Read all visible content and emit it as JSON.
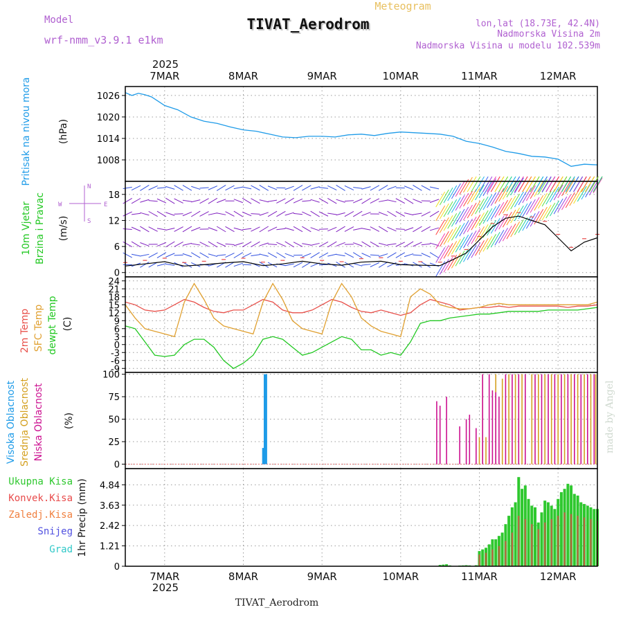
{
  "header": {
    "model_label": "Model",
    "model_name": "wrf-nmm_v3.9.1  e1km",
    "product": "Meteogram",
    "station": "TIVAT_Aerodrom",
    "location": "lon,lat (18.73E, 42.4N)",
    "elevation": "Nadmorska Visina 2m",
    "model_elevation": "Nadmorska Visina u modelu 102.539m",
    "footer_station": "TIVAT_Aerodrom",
    "credit": "made by Angel"
  },
  "time_axis": {
    "year": "2025",
    "days": [
      "7MAR",
      "8MAR",
      "9MAR",
      "10MAR",
      "11MAR",
      "12MAR"
    ],
    "x_range_hours": [
      0,
      144
    ],
    "label_hours": [
      12,
      36,
      60,
      84,
      108,
      132
    ]
  },
  "colors": {
    "pressure": "#1e9be8",
    "t2m": "#e8504a",
    "sfc": "#e0a030",
    "dewpoint": "#22c822",
    "cloud_high": "#1e9be8",
    "cloud_mid": "#d4a020",
    "cloud_low": "#cc1090",
    "precip_total": "#2ec82e",
    "precip_conv": "#e84a4a",
    "precip_frozen": "#f08040",
    "snow": "#5050e0",
    "hail": "#30c8c8",
    "wind_legend": "#b060d0",
    "title_purple": "#b060d0",
    "meteogram_gold": "#e8c060"
  },
  "chart_data": [
    {
      "type": "line",
      "panel": "pressure",
      "ylabel_left": "Pritisak na nivou mora",
      "unit": "(hPa)",
      "ylim": [
        1002,
        1028.5
      ],
      "yticks": [
        1008,
        1014,
        1020,
        1026
      ],
      "grid": true,
      "x_hours": [
        0,
        2,
        4,
        6,
        8,
        10,
        12,
        16,
        20,
        24,
        28,
        32,
        36,
        40,
        44,
        48,
        52,
        56,
        60,
        64,
        68,
        72,
        76,
        80,
        84,
        88,
        92,
        96,
        100,
        104,
        108,
        112,
        116,
        120,
        124,
        128,
        132,
        136,
        140,
        144
      ],
      "series": [
        {
          "values": [
            1026.8,
            1026.0,
            1026.6,
            1026.2,
            1025.6,
            1024.4,
            1023.2,
            1022.0,
            1020.0,
            1018.8,
            1018.2,
            1017.2,
            1016.4,
            1016.0,
            1015.2,
            1014.4,
            1014.2,
            1014.6,
            1014.6,
            1014.4,
            1015.0,
            1015.2,
            1014.8,
            1015.4,
            1015.8,
            1015.6,
            1015.4,
            1015.2,
            1014.6,
            1013.2,
            1012.6,
            1011.6,
            1010.4,
            1009.8,
            1009.0,
            1008.8,
            1008.2,
            1006.2,
            1006.8,
            1006.6
          ]
        }
      ]
    },
    {
      "type": "line",
      "panel": "wind",
      "ylabel_left": "10m Vjetar",
      "ylabel_left2": "Brzina i Pravac",
      "unit": "(m/s)",
      "ylim": [
        -1,
        21
      ],
      "yticks": [
        0,
        6,
        12,
        18
      ],
      "direction_legend": {
        "n": "N",
        "s": "S",
        "w": "W",
        "e": "E"
      },
      "grid": true,
      "x_hours": [
        0,
        6,
        12,
        18,
        24,
        30,
        36,
        42,
        48,
        54,
        60,
        66,
        72,
        78,
        84,
        90,
        96,
        100,
        104,
        108,
        112,
        116,
        120,
        124,
        128,
        132,
        136,
        140,
        144
      ],
      "series": [
        {
          "name": "speed",
          "values": [
            1.5,
            2.0,
            2.5,
            1.5,
            1.8,
            2.2,
            2.5,
            1.6,
            2.0,
            2.6,
            2.0,
            1.7,
            2.4,
            2.6,
            1.8,
            1.7,
            1.6,
            3.0,
            4.5,
            7.5,
            10.5,
            12.5,
            13.0,
            12.0,
            11.0,
            8.0,
            5.0,
            7.0,
            8.0
          ]
        }
      ]
    },
    {
      "type": "line",
      "panel": "temperature",
      "ylabel_left": "2m Temp",
      "ylabel_left2": "SFC Temp",
      "ylabel_left3": "dewpt Temp",
      "unit": "(C)",
      "ylim": [
        -10.5,
        25.5
      ],
      "yticks": [
        -9,
        -6,
        -3,
        0,
        3,
        6,
        9,
        12,
        15,
        18,
        21,
        24
      ],
      "grid": true,
      "x_hours": [
        0,
        3,
        6,
        9,
        12,
        15,
        18,
        21,
        24,
        27,
        30,
        33,
        36,
        39,
        42,
        45,
        48,
        51,
        54,
        57,
        60,
        63,
        66,
        69,
        72,
        75,
        78,
        81,
        84,
        87,
        90,
        93,
        96,
        99,
        102,
        105,
        108,
        111,
        114,
        117,
        120,
        123,
        126,
        129,
        132,
        135,
        138,
        141,
        144
      ],
      "series": [
        {
          "name": "2m Temp",
          "values": [
            16,
            15,
            13,
            12.5,
            13,
            15,
            17,
            16,
            14,
            12.5,
            12,
            13,
            13,
            15,
            17,
            16,
            13,
            12,
            12,
            13,
            15,
            17,
            16,
            14,
            12.5,
            12,
            13,
            12,
            11,
            12,
            15,
            17,
            16,
            15,
            13,
            13.5,
            14,
            14,
            14.5,
            14,
            14.5,
            14.5,
            14.5,
            14.5,
            14.5,
            14,
            14.5,
            14.5,
            15
          ]
        },
        {
          "name": "SFC Temp",
          "values": [
            15,
            10,
            6,
            5,
            4,
            3,
            16,
            23,
            17,
            10,
            7,
            6,
            5,
            4,
            16,
            23,
            17,
            9,
            6,
            5,
            4,
            16,
            23,
            18,
            10,
            7,
            5,
            4,
            3,
            18,
            21,
            19,
            15,
            14,
            13.5,
            13.5,
            14,
            15,
            15.5,
            15,
            15,
            15,
            15,
            15,
            15,
            15,
            15,
            15,
            16
          ]
        },
        {
          "name": "dewpt Temp",
          "values": [
            7,
            6,
            1,
            -4,
            -4.5,
            -4,
            0,
            2,
            2,
            -1,
            -6,
            -9,
            -7,
            -4,
            2,
            3,
            2,
            -1,
            -4,
            -3,
            -1,
            1,
            3,
            2,
            -2,
            -2,
            -4,
            -3,
            -4,
            1,
            8,
            9,
            9,
            10,
            10.5,
            11,
            11.5,
            11.5,
            12,
            12.5,
            12.5,
            12.5,
            12.5,
            13,
            13,
            13,
            13,
            13.5,
            14
          ]
        }
      ]
    },
    {
      "type": "bar",
      "panel": "clouds",
      "ylabel_left": "Visoka Oblacnost",
      "ylabel_left2": "Srednja Oblacnost",
      "ylabel_left3": "Niska Oblacnost",
      "unit": "(%)",
      "ylim": [
        -5,
        102
      ],
      "yticks": [
        0,
        25,
        50,
        75,
        100
      ],
      "grid": true,
      "series": [
        {
          "name": "Visoka Oblacnost",
          "points": [
            [
              42,
              18
            ],
            [
              42.5,
              100
            ],
            [
              43,
              100
            ]
          ]
        },
        {
          "name": "Srednja Oblacnost",
          "points": [
            [
              108,
              30
            ],
            [
              109,
              100
            ],
            [
              110,
              30
            ],
            [
              113,
              100
            ],
            [
              115,
              95
            ],
            [
              117,
              100
            ],
            [
              119,
              100
            ],
            [
              121,
              100
            ],
            [
              124,
              100
            ],
            [
              126,
              100
            ],
            [
              128,
              100
            ],
            [
              130,
              100
            ],
            [
              132,
              100
            ],
            [
              134,
              100
            ],
            [
              136,
              100
            ],
            [
              138,
              100
            ],
            [
              140,
              100
            ],
            [
              142,
              100
            ],
            [
              143.5,
              100
            ]
          ]
        },
        {
          "name": "Niska Oblacnost",
          "points": [
            [
              95,
              70
            ],
            [
              96,
              65
            ],
            [
              98,
              75
            ],
            [
              102,
              42
            ],
            [
              104,
              50
            ],
            [
              105,
              55
            ],
            [
              107,
              40
            ],
            [
              109,
              100
            ],
            [
              111,
              100
            ],
            [
              112,
              82
            ],
            [
              113,
              80
            ],
            [
              114,
              75
            ],
            [
              116,
              100
            ],
            [
              118,
              100
            ],
            [
              120,
              100
            ],
            [
              122,
              100
            ],
            [
              125,
              100
            ],
            [
              127,
              100
            ],
            [
              129,
              100
            ],
            [
              131,
              100
            ],
            [
              133,
              100
            ],
            [
              135,
              100
            ],
            [
              137,
              100
            ],
            [
              139,
              100
            ],
            [
              141,
              100
            ],
            [
              143,
              100
            ]
          ]
        }
      ]
    },
    {
      "type": "bar",
      "panel": "precip",
      "ylabel_left": "1hr Precip (mm)",
      "legend": [
        "Ukupna Kisa",
        "Konvek.Kisa",
        "Zaledj.Kisa",
        "Snijeg",
        "Grad"
      ],
      "ylim": [
        0,
        5.8
      ],
      "yticks": [
        0,
        1.21,
        2.42,
        3.63,
        4.84
      ],
      "grid": true,
      "series": [
        {
          "name": "Ukupna Kisa",
          "x_hours": [
            96,
            97,
            98,
            99,
            100,
            101,
            102,
            103,
            104,
            105,
            106,
            107,
            108,
            109,
            110,
            111,
            112,
            113,
            114,
            115,
            116,
            117,
            118,
            119,
            120,
            121,
            122,
            123,
            124,
            125,
            126,
            127,
            128,
            129,
            130,
            131,
            132,
            133,
            134,
            135,
            136,
            137,
            138,
            139,
            140,
            141,
            142,
            143,
            144
          ],
          "values": [
            0.08,
            0.1,
            0.12,
            0.05,
            0.02,
            0.0,
            0.04,
            0.05,
            0.06,
            0.05,
            0.02,
            0.06,
            0.9,
            1.0,
            1.1,
            1.3,
            1.6,
            1.6,
            1.8,
            2.0,
            2.5,
            3.0,
            3.5,
            3.8,
            5.3,
            4.6,
            4.8,
            4.0,
            3.6,
            3.5,
            2.6,
            3.2,
            3.9,
            3.8,
            3.6,
            3.4,
            4.0,
            4.4,
            4.6,
            4.9,
            4.8,
            4.3,
            4.2,
            3.8,
            3.7,
            3.6,
            3.5,
            3.4,
            3.4
          ]
        },
        {
          "name": "Konvek.Kisa",
          "x_hours": [
            108,
            110,
            112,
            114,
            116,
            118,
            120,
            122,
            124,
            126,
            128,
            130,
            132,
            134,
            136,
            138,
            140,
            142,
            144
          ],
          "values": [
            0.7,
            0.8,
            1.0,
            1.2,
            1.5,
            2.0,
            3.0,
            2.8,
            2.5,
            2.2,
            2.6,
            2.8,
            3.0,
            3.2,
            3.1,
            3.0,
            2.9,
            2.8,
            2.7
          ]
        }
      ]
    }
  ]
}
